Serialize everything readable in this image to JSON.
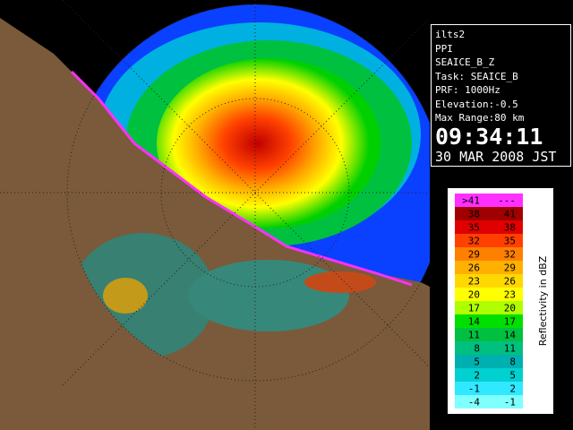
{
  "info": {
    "lines": [
      "ilts2",
      "PPI",
      "SEAICE_B_Z",
      "Task: SEAICE_B",
      "PRF: 1000Hz",
      "Elevation:-0.5",
      "Max Range:80 km"
    ],
    "time": "09:34:11",
    "date": "30 MAR 2008 JST"
  },
  "legend": {
    "title": "Reflectivity in dBZ",
    "rows": [
      {
        "low": ">41",
        "high": "---",
        "color": "#ff30ff"
      },
      {
        "low": "38",
        "high": "41",
        "color": "#a00000"
      },
      {
        "low": "35",
        "high": "38",
        "color": "#e00000"
      },
      {
        "low": "32",
        "high": "35",
        "color": "#ff4000"
      },
      {
        "low": "29",
        "high": "32",
        "color": "#ff8000"
      },
      {
        "low": "26",
        "high": "29",
        "color": "#ffb000"
      },
      {
        "low": "23",
        "high": "26",
        "color": "#ffd800"
      },
      {
        "low": "20",
        "high": "23",
        "color": "#ffff00"
      },
      {
        "low": "17",
        "high": "20",
        "color": "#b0ff00"
      },
      {
        "low": "14",
        "high": "17",
        "color": "#00e000"
      },
      {
        "low": "11",
        "high": "14",
        "color": "#00c040"
      },
      {
        "low": "8",
        "high": "11",
        "color": "#00c080"
      },
      {
        "low": "5",
        "high": "8",
        "color": "#00b0b0"
      },
      {
        "low": "2",
        "high": "5",
        "color": "#00d0d0"
      },
      {
        "low": "-1",
        "high": "2",
        "color": "#30e8ff"
      },
      {
        "low": "-4",
        "high": "-1",
        "color": "#80ffff"
      }
    ]
  }
}
